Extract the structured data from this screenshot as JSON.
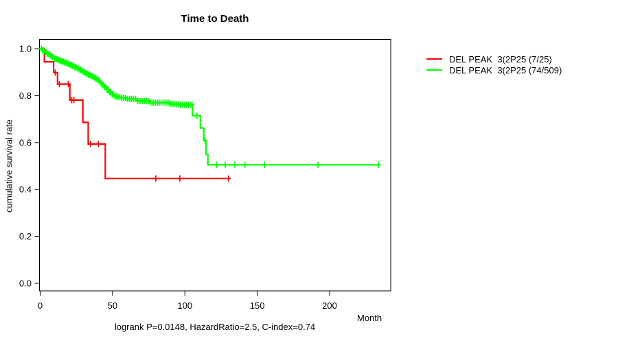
{
  "caption": "logrank P=0.0148, HazardRatio=2.5, C-index=0.74",
  "legend": {
    "items": [
      {
        "label": "DEL PEAK  3(2P25 (7/25)",
        "color": "#ff0000"
      },
      {
        "label": "DEL PEAK  3(2P25 (74/509)",
        "color": "#00ff00"
      }
    ]
  },
  "chart_data": {
    "type": "line",
    "subtype": "kaplan-meier-step",
    "title": "Time to Death",
    "xlabel": "Month",
    "ylabel": "cumulative survival rate",
    "x_ticks": [
      0,
      50,
      100,
      150,
      200
    ],
    "y_ticks": [
      0.0,
      0.2,
      0.4,
      0.6,
      0.8,
      1.0
    ],
    "xlim": [
      0,
      243
    ],
    "ylim": [
      0.0,
      1.04
    ],
    "grid": false,
    "legend_position": "right-outside",
    "series": [
      {
        "name": "DEL PEAK  3(2P25 (7/25)",
        "events_over_n": "7/25",
        "color": "#ff0000",
        "steps": [
          [
            0,
            1.0,
            "d"
          ],
          [
            2.9,
            0.944,
            "d"
          ],
          [
            9.3,
            0.898,
            "d"
          ],
          [
            12.0,
            0.849,
            "d"
          ],
          [
            20.5,
            0.781,
            "d"
          ],
          [
            29.5,
            0.686,
            "d"
          ],
          [
            33.2,
            0.594,
            "d"
          ],
          [
            45.0,
            0.447,
            "d"
          ]
        ],
        "end_month": 130.5,
        "censor_months": [
          10.5,
          13.3,
          19.4,
          21.8,
          23.3,
          34.8,
          40.3,
          79.9,
          96.5,
          130.2
        ]
      },
      {
        "name": "DEL PEAK  3(2P25 (74/509)",
        "events_over_n": "74/509",
        "color": "#00ff00",
        "steps": [
          [
            0,
            1.0,
            "d"
          ],
          [
            5,
            0.978,
            "s"
          ],
          [
            10,
            0.957,
            "s"
          ],
          [
            15,
            0.945,
            "s"
          ],
          [
            20,
            0.932,
            "s"
          ],
          [
            25,
            0.916,
            "s"
          ],
          [
            30,
            0.9,
            "s"
          ],
          [
            35,
            0.884,
            "s"
          ],
          [
            40,
            0.865,
            "s"
          ],
          [
            44,
            0.838,
            "s"
          ],
          [
            47.5,
            0.814,
            "s"
          ],
          [
            50.6,
            0.798,
            "s"
          ],
          [
            56,
            0.791,
            "s"
          ],
          [
            60,
            0.786,
            "d"
          ],
          [
            66.4,
            0.777,
            "d"
          ],
          [
            76,
            0.77,
            "d"
          ],
          [
            90,
            0.764,
            "d"
          ],
          [
            97,
            0.761,
            "d"
          ],
          [
            105.2,
            0.715,
            "d"
          ],
          [
            110.7,
            0.662,
            "d"
          ],
          [
            113.1,
            0.608,
            "d"
          ],
          [
            114.6,
            0.55,
            "d"
          ],
          [
            115.9,
            0.505,
            "d"
          ]
        ],
        "end_month": 233.8,
        "censor_months": [
          0.8,
          1.7,
          2.5,
          3.4,
          4.2,
          5.1,
          6,
          6.8,
          7.7,
          8.5,
          9.4,
          10.2,
          11.1,
          12,
          12.8,
          13.7,
          14.5,
          15.4,
          16.2,
          17.1,
          18,
          18.8,
          19.7,
          20.5,
          21.4,
          22.2,
          23.1,
          24,
          24.8,
          25.7,
          26.5,
          27.4,
          28.2,
          29.1,
          30,
          30.8,
          31.7,
          32.5,
          33.4,
          34.2,
          35.1,
          36,
          36.8,
          37.7,
          38.5,
          39.4,
          40.2,
          41.1,
          42,
          42.8,
          43.7,
          44.5,
          45.4,
          46.2,
          47.1,
          48,
          48.8,
          49.7,
          50.5,
          51.6,
          52.7,
          53.8,
          55,
          56.2,
          57.5,
          58.8,
          60.2,
          61.6,
          63,
          64.5,
          66,
          67.5,
          69,
          70.5,
          72,
          73.5,
          75,
          76.5,
          78,
          79.5,
          81,
          82.3,
          83.6,
          85,
          86.3,
          87.7,
          89,
          90.3,
          91.7,
          93,
          94.3,
          95.7,
          97,
          98.3,
          99.7,
          101,
          102.3,
          103.7,
          105,
          108.3,
          114,
          122,
          128,
          134.5,
          141.5,
          155,
          192,
          233.8
        ]
      }
    ]
  }
}
